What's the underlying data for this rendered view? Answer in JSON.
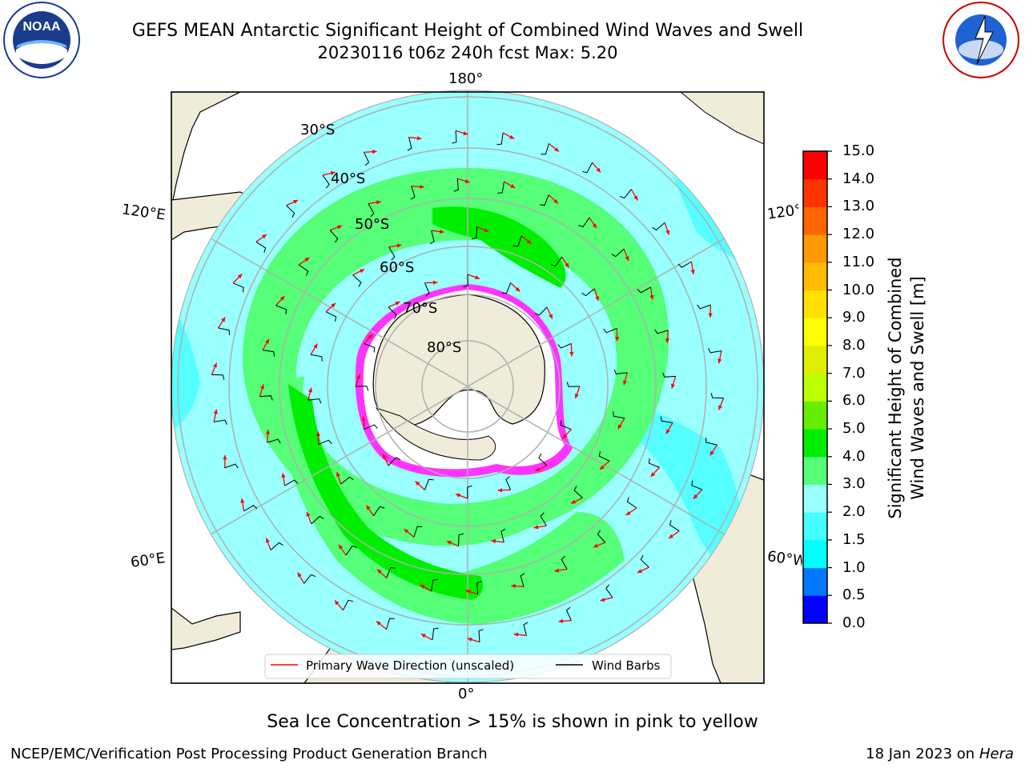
{
  "title": {
    "line1": "GEFS MEAN Antarctic Significant Height of Combined Wind Waves and Swell",
    "line2": "20230116 t06z 240h fcst   Max: 5.20"
  },
  "logos": {
    "left": "noaa-logo",
    "left_text": "NOAA",
    "left_ring_text": "NATIONAL OCEANIC AND ATMOSPHERIC ADMINISTRATION · U.S. DEPARTMENT OF COMMERCE",
    "right": "nws-logo",
    "right_ring_text": "NATIONAL WEATHER SERVICE"
  },
  "map": {
    "projection": "south-polar-stereographic",
    "lon_labels": {
      "top": "180°",
      "bottom": "0°",
      "upper_left": "120°E",
      "upper_right": "120°W",
      "lower_left": "60°E",
      "lower_right": "60°W"
    },
    "lat_labels": [
      "30°S",
      "40°S",
      "50°S",
      "60°S",
      "70°S",
      "80°S"
    ],
    "colors": {
      "land": "#efecda",
      "ice_white": "#ffffff",
      "ice_edge": "#ff33ff",
      "arrow": "#ff0000",
      "barb": "#000000",
      "graticule": "#b0b0b0"
    }
  },
  "legend": {
    "wave_label": "Primary Wave Direction (unscaled)",
    "barb_label": "Wind Barbs"
  },
  "colorbar": {
    "label_line1": "Significant Height of Combined",
    "label_line2": "Wind Waves and Swell [m]",
    "ticks": [
      "15.0",
      "14.0",
      "13.0",
      "12.0",
      "11.0",
      "10.0",
      "9.0",
      "8.0",
      "7.0",
      "6.0",
      "5.0",
      "4.0",
      "3.0",
      "2.0",
      "1.5",
      "1.0",
      "0.5",
      "0.0"
    ],
    "levels": [
      0.0,
      0.5,
      1.0,
      1.5,
      2.0,
      3.0,
      4.0,
      5.0,
      6.0,
      7.0,
      8.0,
      9.0,
      10.0,
      11.0,
      12.0,
      13.0,
      14.0,
      15.0
    ],
    "colors": [
      "#0000ff",
      "#0077ff",
      "#00ffff",
      "#44ffff",
      "#99ffff",
      "#55ff77",
      "#00ee00",
      "#66ee00",
      "#bbff00",
      "#ddee00",
      "#ffff00",
      "#ffe000",
      "#ffbb00",
      "#ff9900",
      "#ff6600",
      "#ff3300",
      "#ff0000"
    ]
  },
  "chart_data": {
    "type": "heatmap",
    "variable": "Significant Height of Combined Wind Waves and Swell",
    "units": "m",
    "max": 5.2,
    "range": [
      0.0,
      15.0
    ]
  },
  "notes": {
    "ice": "Sea Ice Concentration > 15% is shown in pink to yellow"
  },
  "footer": {
    "left": "NCEP/EMC/Verification Post Processing Product Generation Branch",
    "date": "18 Jan 2023 on ",
    "machine": "Hera"
  }
}
